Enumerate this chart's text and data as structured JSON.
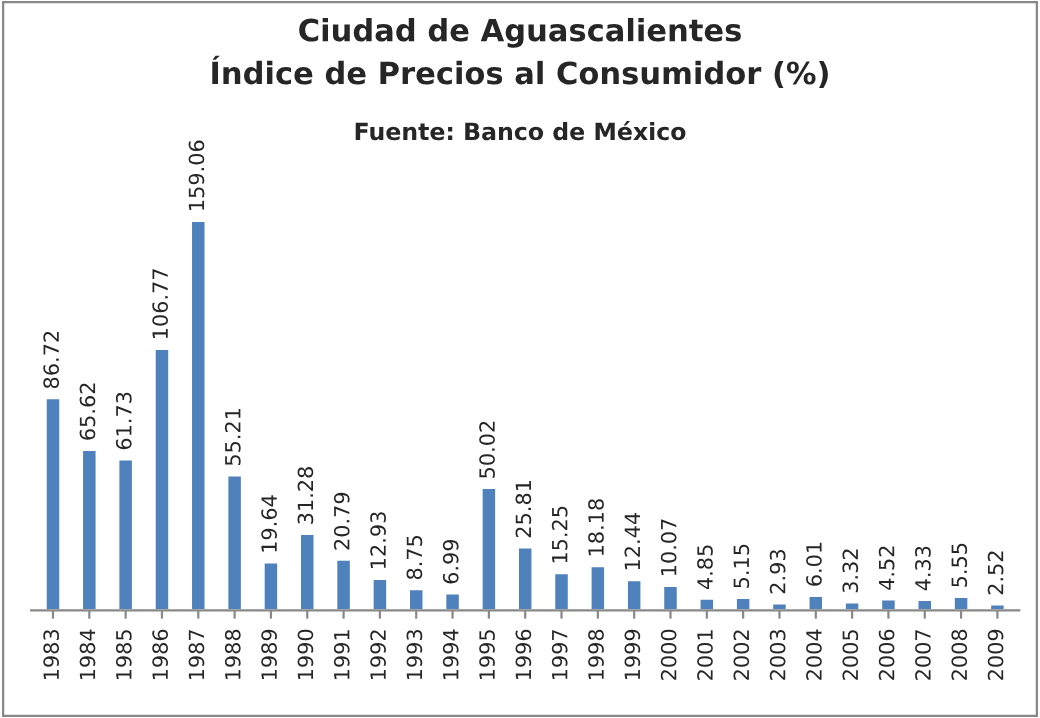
{
  "chart_data": {
    "type": "bar",
    "title": "Ciudad de Aguascalientes\nÍndice de Precios al Consumidor (%)",
    "subtitle": "Fuente: Banco de México",
    "categories": [
      "1983",
      "1984",
      "1985",
      "1986",
      "1987",
      "1988",
      "1989",
      "1990",
      "1991",
      "1992",
      "1993",
      "1994",
      "1995",
      "1996",
      "1997",
      "1998",
      "1999",
      "2000",
      "2001",
      "2002",
      "2003",
      "2004",
      "2005",
      "2006",
      "2007",
      "2008",
      "2009"
    ],
    "values": [
      86.72,
      65.62,
      61.73,
      106.77,
      159.06,
      55.21,
      19.64,
      31.28,
      20.79,
      12.93,
      8.75,
      6.99,
      50.02,
      25.81,
      15.25,
      18.18,
      12.44,
      10.07,
      4.85,
      5.15,
      2.93,
      6.01,
      3.32,
      4.52,
      4.33,
      5.55,
      2.52
    ],
    "color": "#4f81bd",
    "data_labels": true,
    "grid": false,
    "legend": false
  }
}
